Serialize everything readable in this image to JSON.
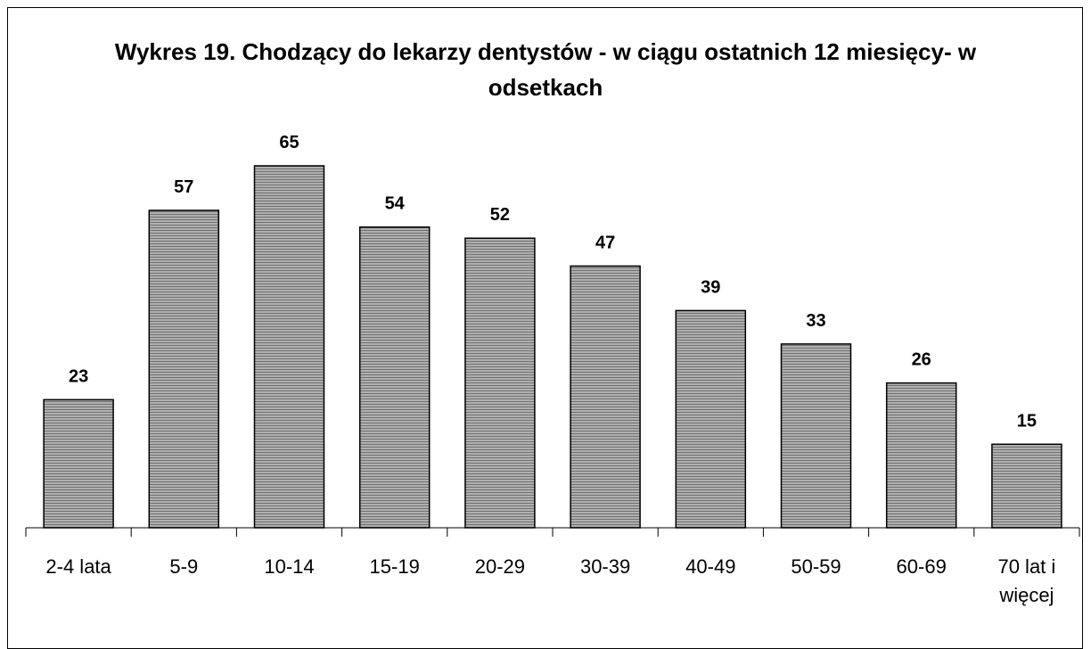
{
  "chart_data": {
    "type": "bar",
    "title": "Wykres 19. Chodzący do lekarzy dentystów  - w ciągu ostatnich 12 miesięcy- w odsetkach",
    "categories": [
      "2-4 lata",
      "5-9",
      "10-14",
      "15-19",
      "20-29",
      "30-39",
      "40-49",
      "50-59",
      "60-69",
      "70 lat i więcej"
    ],
    "values": [
      23,
      57,
      65,
      54,
      52,
      47,
      39,
      33,
      26,
      15
    ]
  }
}
